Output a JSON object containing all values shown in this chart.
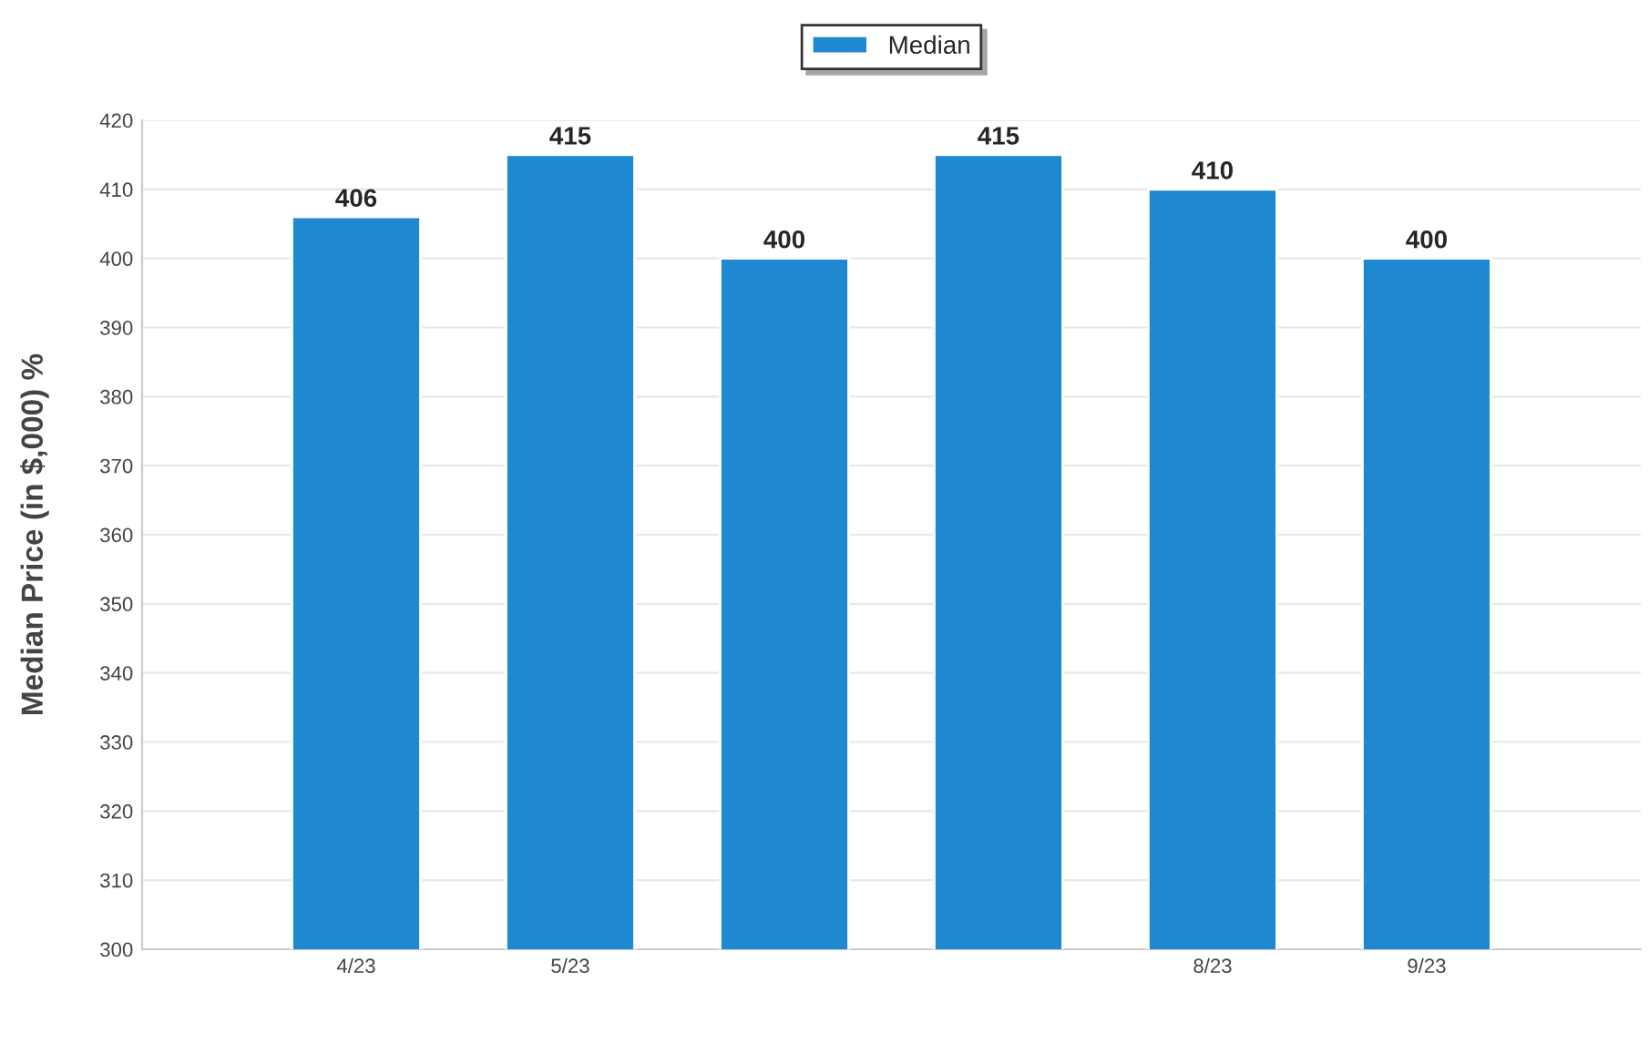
{
  "chart_data": {
    "type": "bar",
    "ylabel": "Median Price (in $,000) %",
    "categories": [
      "4/23",
      "5/23",
      null,
      null,
      "8/23",
      "9/23"
    ],
    "series": [
      {
        "name": "Median",
        "color": "#1e88d0",
        "values": [
          406,
          415,
          400,
          415,
          410,
          400
        ]
      }
    ],
    "ylim": [
      300,
      420
    ],
    "yticks": [
      300,
      310,
      320,
      330,
      340,
      350,
      360,
      370,
      380,
      390,
      400,
      410,
      420
    ],
    "grid": "y",
    "legend": "top",
    "data_labels": true
  }
}
